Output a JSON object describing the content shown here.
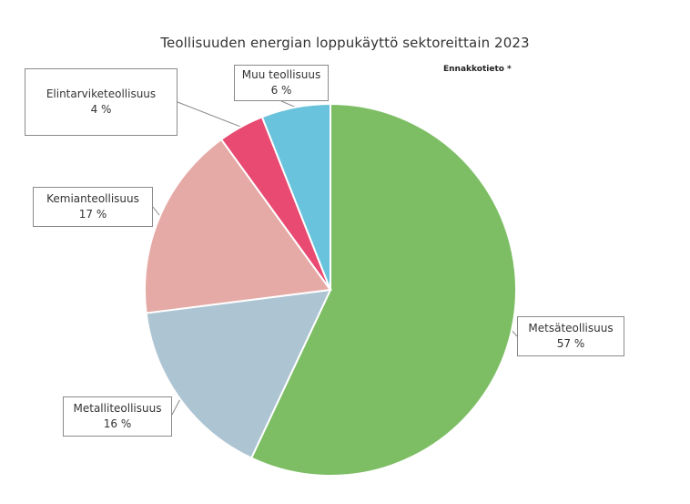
{
  "chart_data": {
    "type": "pie",
    "title": "Teollisuuden energian loppukäyttö sektoreittain 2023",
    "note": "Ennakkotieto *",
    "start_angle_deg": 0,
    "direction": "clockwise",
    "slices": [
      {
        "name": "Metsäteollisuus",
        "value": 57,
        "label": "57 %",
        "color": "#7dbe65"
      },
      {
        "name": "Metalliteollisuus",
        "value": 16,
        "label": "16 %",
        "color": "#adc4d3"
      },
      {
        "name": "Kemianteollisuus",
        "value": 17,
        "label": "17 %",
        "color": "#e5aaa6"
      },
      {
        "name": "Elintarviketeollisuus",
        "value": 4,
        "label": "4 %",
        "color": "#e84a72"
      },
      {
        "name": "Muu teollisuus",
        "value": 6,
        "label": "6 %",
        "color": "#6ac3dc"
      }
    ]
  }
}
